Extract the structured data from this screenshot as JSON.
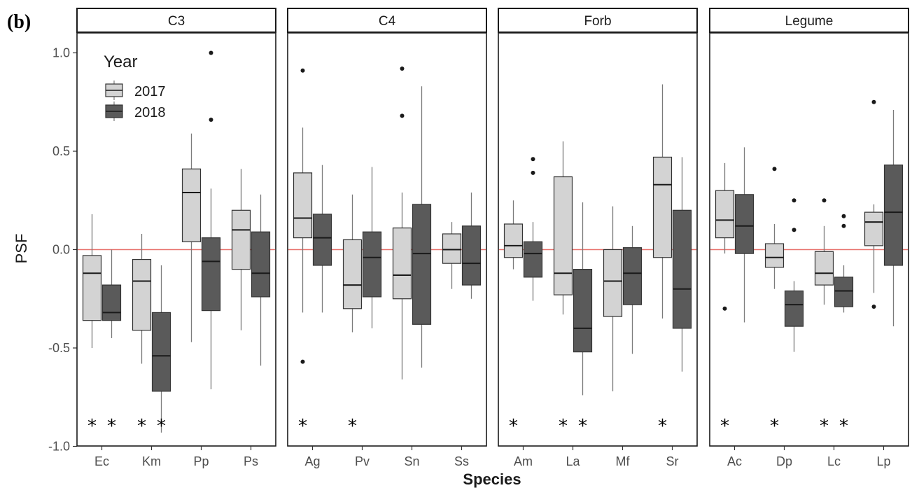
{
  "figure_label": "(b)",
  "chart_data": {
    "type": "box",
    "xlabel": "Species",
    "ylabel": "PSF",
    "ylim": [
      -1.0,
      1.2
    ],
    "yticks": [
      -1.0,
      -0.5,
      0.0,
      0.5,
      1.0
    ],
    "ytick_labels": [
      "-1.0",
      "-0.5",
      "0.0",
      "0.5",
      "1.0"
    ],
    "reference_line": {
      "y": 0,
      "color": "#e8736e"
    },
    "legend": {
      "title": "Year",
      "position": "top-left",
      "entries": [
        {
          "label": "2017",
          "color": "#d3d3d3"
        },
        {
          "label": "2018",
          "color": "#5a5a5a"
        }
      ]
    },
    "panels": [
      {
        "label": "C3",
        "species": [
          {
            "name": "Ec",
            "star": "* *",
            "y2017": {
              "lw": -0.5,
              "q1": -0.36,
              "med": -0.12,
              "q3": -0.03,
              "uw": 0.18,
              "outliers": []
            },
            "y2018": {
              "lw": -0.45,
              "q1": -0.36,
              "med": -0.32,
              "q3": -0.18,
              "uw": 0.0,
              "outliers": []
            }
          },
          {
            "name": "Km",
            "star": "* *",
            "y2017": {
              "lw": -0.58,
              "q1": -0.41,
              "med": -0.16,
              "q3": -0.05,
              "uw": 0.08,
              "outliers": []
            },
            "y2018": {
              "lw": -0.93,
              "q1": -0.72,
              "med": -0.54,
              "q3": -0.32,
              "uw": -0.08,
              "outliers": []
            }
          },
          {
            "name": "Pp",
            "star": "",
            "y2017": {
              "lw": -0.47,
              "q1": 0.04,
              "med": 0.29,
              "q3": 0.41,
              "uw": 0.59,
              "outliers": []
            },
            "y2018": {
              "lw": -0.71,
              "q1": -0.31,
              "med": -0.06,
              "q3": 0.06,
              "uw": 0.31,
              "outliers": [
                1.0,
                0.66
              ]
            }
          },
          {
            "name": "Ps",
            "star": "",
            "y2017": {
              "lw": -0.41,
              "q1": -0.1,
              "med": 0.1,
              "q3": 0.2,
              "uw": 0.41,
              "outliers": []
            },
            "y2018": {
              "lw": -0.59,
              "q1": -0.24,
              "med": -0.12,
              "q3": 0.09,
              "uw": 0.28,
              "outliers": []
            }
          }
        ]
      },
      {
        "label": "C4",
        "species": [
          {
            "name": "Ag",
            "star": "*",
            "y2017": {
              "lw": -0.32,
              "q1": 0.06,
              "med": 0.16,
              "q3": 0.39,
              "uw": 0.62,
              "outliers": [
                0.91,
                -0.57
              ]
            },
            "y2018": {
              "lw": -0.32,
              "q1": -0.08,
              "med": 0.06,
              "q3": 0.18,
              "uw": 0.43,
              "outliers": []
            }
          },
          {
            "name": "Pv",
            "star": "*",
            "y2017": {
              "lw": -0.42,
              "q1": -0.3,
              "med": -0.18,
              "q3": 0.05,
              "uw": 0.28,
              "outliers": []
            },
            "y2018": {
              "lw": -0.4,
              "q1": -0.24,
              "med": -0.04,
              "q3": 0.09,
              "uw": 0.42,
              "outliers": []
            }
          },
          {
            "name": "Sn",
            "star": "",
            "y2017": {
              "lw": -0.66,
              "q1": -0.25,
              "med": -0.13,
              "q3": 0.11,
              "uw": 0.29,
              "outliers": [
                0.92,
                0.68
              ]
            },
            "y2018": {
              "lw": -0.6,
              "q1": -0.38,
              "med": -0.02,
              "q3": 0.23,
              "uw": 0.83,
              "outliers": []
            }
          },
          {
            "name": "Ss",
            "star": "",
            "y2017": {
              "lw": -0.2,
              "q1": -0.07,
              "med": 0.0,
              "q3": 0.08,
              "uw": 0.14,
              "outliers": []
            },
            "y2018": {
              "lw": -0.25,
              "q1": -0.18,
              "med": -0.07,
              "q3": 0.12,
              "uw": 0.29,
              "outliers": []
            }
          }
        ]
      },
      {
        "label": "Forb",
        "species": [
          {
            "name": "Am",
            "star": "*",
            "y2017": {
              "lw": -0.1,
              "q1": -0.04,
              "med": 0.02,
              "q3": 0.13,
              "uw": 0.25,
              "outliers": []
            },
            "y2018": {
              "lw": -0.26,
              "q1": -0.14,
              "med": -0.02,
              "q3": 0.04,
              "uw": 0.14,
              "outliers": [
                0.46,
                0.39
              ]
            }
          },
          {
            "name": "La",
            "star": "* *",
            "y2017": {
              "lw": -0.33,
              "q1": -0.23,
              "med": -0.12,
              "q3": 0.37,
              "uw": 0.55,
              "outliers": []
            },
            "y2018": {
              "lw": -0.74,
              "q1": -0.52,
              "med": -0.4,
              "q3": -0.1,
              "uw": 0.24,
              "outliers": []
            }
          },
          {
            "name": "Mf",
            "star": "",
            "y2017": {
              "lw": -0.72,
              "q1": -0.34,
              "med": -0.16,
              "q3": 0.0,
              "uw": 0.22,
              "outliers": []
            },
            "y2018": {
              "lw": -0.53,
              "q1": -0.28,
              "med": -0.12,
              "q3": 0.01,
              "uw": 0.12,
              "outliers": []
            }
          },
          {
            "name": "Sr",
            "star": "*",
            "y2017": {
              "lw": -0.35,
              "q1": -0.04,
              "med": 0.33,
              "q3": 0.47,
              "uw": 0.84,
              "outliers": []
            },
            "y2018": {
              "lw": -0.62,
              "q1": -0.4,
              "med": -0.2,
              "q3": 0.2,
              "uw": 0.47,
              "outliers": []
            }
          }
        ]
      },
      {
        "label": "Legume",
        "species": [
          {
            "name": "Ac",
            "star": "*",
            "y2017": {
              "lw": -0.02,
              "q1": 0.06,
              "med": 0.15,
              "q3": 0.3,
              "uw": 0.44,
              "outliers": [
                -0.3
              ]
            },
            "y2018": {
              "lw": -0.37,
              "q1": -0.02,
              "med": 0.12,
              "q3": 0.28,
              "uw": 0.52,
              "outliers": []
            }
          },
          {
            "name": "Dp",
            "star": "*",
            "y2017": {
              "lw": -0.2,
              "q1": -0.09,
              "med": -0.04,
              "q3": 0.03,
              "uw": 0.13,
              "outliers": [
                0.41
              ]
            },
            "y2018": {
              "lw": -0.52,
              "q1": -0.39,
              "med": -0.28,
              "q3": -0.21,
              "uw": -0.16,
              "outliers": [
                0.25,
                0.1
              ]
            }
          },
          {
            "name": "Lc",
            "star": "* *",
            "y2017": {
              "lw": -0.28,
              "q1": -0.18,
              "med": -0.12,
              "q3": -0.01,
              "uw": 0.12,
              "outliers": [
                0.25
              ]
            },
            "y2018": {
              "lw": -0.32,
              "q1": -0.29,
              "med": -0.21,
              "q3": -0.14,
              "uw": -0.08,
              "outliers": [
                0.17,
                0.12
              ]
            }
          },
          {
            "name": "Lp",
            "star": "",
            "y2017": {
              "lw": -0.22,
              "q1": 0.02,
              "med": 0.14,
              "q3": 0.19,
              "uw": 0.23,
              "outliers": [
                0.75,
                -0.29
              ]
            },
            "y2018": {
              "lw": -0.39,
              "q1": -0.08,
              "med": 0.19,
              "q3": 0.43,
              "uw": 0.71,
              "outliers": []
            }
          }
        ]
      }
    ]
  }
}
